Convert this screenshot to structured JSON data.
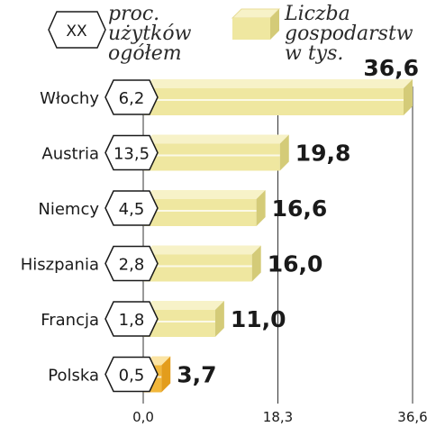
{
  "legend": {
    "badge_text": "XX",
    "badge_line1": "proc.",
    "badge_line2": "użytków",
    "badge_line3": "ogółem",
    "bar_line1": "Liczba",
    "bar_line2": "gospodarstw",
    "bar_line3": "w tys."
  },
  "colors": {
    "bar_face": "#efe7a0",
    "bar_top": "#f7f2c8",
    "bar_shadow": "#d4cb78",
    "highlight_face": "#f2b73a",
    "highlight_top": "#fbe4a4",
    "highlight_shadow": "#e39d1c",
    "gridline": "#333333",
    "text": "#1a1a1a"
  },
  "chart_data": {
    "type": "bar",
    "orientation": "horizontal",
    "categories": [
      "Włochy",
      "Austria",
      "Niemcy",
      "Hiszpania",
      "Francja",
      "Polska"
    ],
    "series": [
      {
        "name": "Liczba gospodarstw w tys.",
        "values": [
          36.6,
          19.8,
          16.6,
          16.0,
          11.0,
          3.7
        ]
      },
      {
        "name": "proc. użytków ogółem",
        "values": [
          6.2,
          13.5,
          4.5,
          2.8,
          1.8,
          0.5
        ]
      }
    ],
    "value_labels": [
      "36,6",
      "19,8",
      "16,6",
      "16,0",
      "11,0",
      "3,7"
    ],
    "badge_labels": [
      "6,2",
      "13,5",
      "4,5",
      "2,8",
      "1,8",
      "0,5"
    ],
    "highlight_category": "Polska",
    "xlim": [
      0,
      36.6
    ],
    "xticks": [
      0,
      18.3,
      36.6
    ],
    "xtick_labels": [
      "0,0",
      "18,3",
      "36,6"
    ],
    "grid": true
  }
}
